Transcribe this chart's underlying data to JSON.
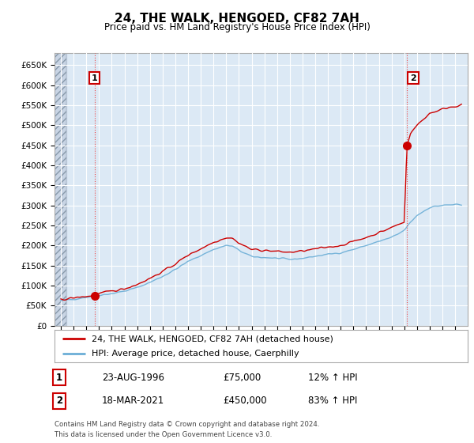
{
  "title": "24, THE WALK, HENGOED, CF82 7AH",
  "subtitle": "Price paid vs. HM Land Registry's House Price Index (HPI)",
  "xlim": [
    1993.5,
    2026.0
  ],
  "ylim": [
    0,
    680000
  ],
  "yticks": [
    0,
    50000,
    100000,
    150000,
    200000,
    250000,
    300000,
    350000,
    400000,
    450000,
    500000,
    550000,
    600000,
    650000
  ],
  "ytick_labels": [
    "£0",
    "£50K",
    "£100K",
    "£150K",
    "£200K",
    "£250K",
    "£300K",
    "£350K",
    "£400K",
    "£450K",
    "£500K",
    "£550K",
    "£600K",
    "£650K"
  ],
  "xticks": [
    1994,
    1995,
    1996,
    1997,
    1998,
    1999,
    2000,
    2001,
    2002,
    2003,
    2004,
    2005,
    2006,
    2007,
    2008,
    2009,
    2010,
    2011,
    2012,
    2013,
    2014,
    2015,
    2016,
    2017,
    2018,
    2019,
    2020,
    2021,
    2022,
    2023,
    2024,
    2025
  ],
  "hpi_color": "#6baed6",
  "price_color": "#cc0000",
  "vline_color": "#ee4444",
  "annotation_box_color": "#cc0000",
  "sale1_x": 1996.645,
  "sale1_y": 75000,
  "sale2_x": 2021.21,
  "sale2_y": 450000,
  "legend_label1": "24, THE WALK, HENGOED, CF82 7AH (detached house)",
  "legend_label2": "HPI: Average price, detached house, Caerphilly",
  "table_row1": [
    "1",
    "23-AUG-1996",
    "£75,000",
    "12% ↑ HPI"
  ],
  "table_row2": [
    "2",
    "18-MAR-2021",
    "£450,000",
    "83% ↑ HPI"
  ],
  "footer": "Contains HM Land Registry data © Crown copyright and database right 2024.\nThis data is licensed under the Open Government Licence v3.0.",
  "chart_bg": "#dce9f5",
  "grid_color": "#ffffff",
  "hatch_color": "#b0b8c8"
}
